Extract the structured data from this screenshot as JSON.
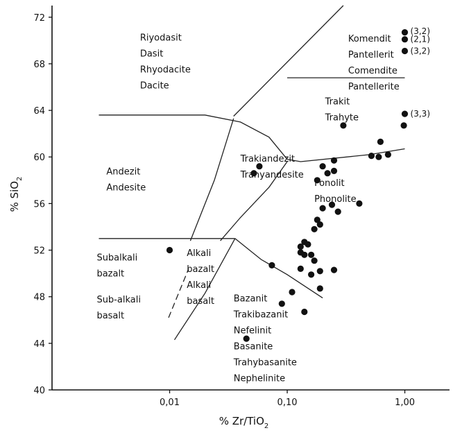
{
  "chart_data": {
    "type": "scatter",
    "title": "",
    "xlabel": "% Zr/TiO",
    "xlabel_sub": "2",
    "ylabel": "% SiO",
    "ylabel_sub": "2",
    "x_scale": "log",
    "xlim": [
      0.001,
      2.4
    ],
    "ylim": [
      40,
      73
    ],
    "x_ticks": [
      {
        "value": 0.01,
        "label": "0,01"
      },
      {
        "value": 0.1,
        "label": "0,10"
      },
      {
        "value": 1.0,
        "label": "1,00"
      }
    ],
    "y_ticks": [
      {
        "value": 40,
        "label": "40"
      },
      {
        "value": 44,
        "label": "44"
      },
      {
        "value": 48,
        "label": "48"
      },
      {
        "value": 52,
        "label": "52"
      },
      {
        "value": 56,
        "label": "56"
      },
      {
        "value": 60,
        "label": "60"
      },
      {
        "value": 64,
        "label": "64"
      },
      {
        "value": 68,
        "label": "68"
      },
      {
        "value": 72,
        "label": "72"
      }
    ],
    "grid": false,
    "legend": "none",
    "boundaries": [
      {
        "name": "rhyolite-trachyte",
        "points": [
          [
            0.035,
            63.5
          ],
          [
            0.3,
            73
          ]
        ]
      },
      {
        "name": "comendite-trachyte",
        "points": [
          [
            0.1,
            66.8
          ],
          [
            1.0,
            66.8
          ]
        ]
      },
      {
        "name": "andesite-upper",
        "points": [
          [
            0.0025,
            63.6
          ],
          [
            0.02,
            63.6
          ],
          [
            0.04,
            63.0
          ],
          [
            0.07,
            61.7
          ],
          [
            0.1,
            59.8
          ]
        ]
      },
      {
        "name": "phonolite-upper",
        "points": [
          [
            0.1,
            59.8
          ],
          [
            0.13,
            59.6
          ],
          [
            0.5,
            60.2
          ],
          [
            1.0,
            60.7
          ]
        ]
      },
      {
        "name": "trachyandesite-lower",
        "points": [
          [
            0.027,
            52.8
          ],
          [
            0.04,
            54.8
          ],
          [
            0.07,
            57.4
          ],
          [
            0.1,
            59.6
          ]
        ]
      },
      {
        "name": "dacite-andesite-divide",
        "points": [
          [
            0.015,
            52.8
          ],
          [
            0.024,
            58.0
          ],
          [
            0.035,
            63.3
          ]
        ]
      },
      {
        "name": "subalkali-top",
        "points": [
          [
            0.0025,
            53.0
          ],
          [
            0.036,
            53.0
          ]
        ]
      },
      {
        "name": "bazanit-upper",
        "points": [
          [
            0.036,
            53.0
          ],
          [
            0.06,
            51.2
          ],
          [
            0.1,
            49.9
          ],
          [
            0.2,
            47.9
          ]
        ]
      },
      {
        "name": "alkali-basalt-line",
        "points": [
          [
            0.011,
            44.3
          ],
          [
            0.02,
            48.3
          ],
          [
            0.036,
            53.0
          ]
        ]
      }
    ],
    "dashed_boundary": {
      "name": "subalkali-alkali-dashed",
      "points": [
        [
          0.0098,
          46.2
        ],
        [
          0.0145,
          50.4
        ]
      ]
    },
    "region_labels": [
      {
        "lines": [
          "Riyodasit",
          "Dasit",
          "Rhyodacite",
          "Dacite"
        ],
        "x": 0.0056,
        "y": 70.0
      },
      {
        "lines": [
          "Komendit",
          "Pantellerit",
          "Comendite",
          "Pantellerite"
        ],
        "x": 0.33,
        "y": 69.9
      },
      {
        "lines": [
          "Trakit",
          "Trahyte"
        ],
        "x": 0.21,
        "y": 64.5
      },
      {
        "lines": [
          "Trakiandezit",
          "Trahyandesite"
        ],
        "x": 0.04,
        "y": 59.6
      },
      {
        "lines": [
          "Andezit",
          "Andesite"
        ],
        "x": 0.0029,
        "y": 58.5
      },
      {
        "lines": [
          "Fonolit",
          "Phonolite"
        ],
        "x": 0.17,
        "y": 57.5
      },
      {
        "lines": [
          "Alkali",
          "bazalt",
          "Alkali",
          "basalt"
        ],
        "x": 0.014,
        "y": 51.5
      },
      {
        "lines": [
          "Subalkali",
          "bazalt"
        ],
        "x": 0.0024,
        "y": 51.1
      },
      {
        "lines": [
          "Sub-alkali",
          "basalt"
        ],
        "x": 0.0024,
        "y": 47.5
      },
      {
        "lines": [
          "Bazanit",
          "Trakibazanit",
          "Nefelinit",
          "Basanite",
          "Trahybasanite",
          "Nephelinite"
        ],
        "x": 0.035,
        "y": 47.6
      }
    ],
    "point_labels": [
      {
        "text": "(3,2)",
        "x": 1.0,
        "y": 70.8
      },
      {
        "text": "(2,1)",
        "x": 1.0,
        "y": 70.1
      },
      {
        "text": "(3,2)",
        "x": 1.0,
        "y": 69.1
      },
      {
        "text": "(3,3)",
        "x": 1.0,
        "y": 63.7
      }
    ],
    "points": [
      {
        "x": 1.0,
        "y": 70.7
      },
      {
        "x": 1.0,
        "y": 70.1
      },
      {
        "x": 1.0,
        "y": 69.1
      },
      {
        "x": 1.0,
        "y": 63.7
      },
      {
        "x": 0.98,
        "y": 62.7
      },
      {
        "x": 0.3,
        "y": 62.7
      },
      {
        "x": 0.62,
        "y": 61.3
      },
      {
        "x": 0.52,
        "y": 60.1
      },
      {
        "x": 0.6,
        "y": 60.0
      },
      {
        "x": 0.72,
        "y": 60.2
      },
      {
        "x": 0.25,
        "y": 59.7
      },
      {
        "x": 0.2,
        "y": 59.2
      },
      {
        "x": 0.25,
        "y": 58.8
      },
      {
        "x": 0.22,
        "y": 58.6
      },
      {
        "x": 0.18,
        "y": 58.0
      },
      {
        "x": 0.058,
        "y": 59.2
      },
      {
        "x": 0.052,
        "y": 58.6
      },
      {
        "x": 0.41,
        "y": 56.0
      },
      {
        "x": 0.24,
        "y": 55.9
      },
      {
        "x": 0.2,
        "y": 55.6
      },
      {
        "x": 0.27,
        "y": 55.3
      },
      {
        "x": 0.18,
        "y": 54.6
      },
      {
        "x": 0.19,
        "y": 54.2
      },
      {
        "x": 0.17,
        "y": 53.8
      },
      {
        "x": 0.14,
        "y": 52.7
      },
      {
        "x": 0.15,
        "y": 52.5
      },
      {
        "x": 0.13,
        "y": 52.3
      },
      {
        "x": 0.13,
        "y": 51.8
      },
      {
        "x": 0.14,
        "y": 51.6
      },
      {
        "x": 0.16,
        "y": 51.6
      },
      {
        "x": 0.17,
        "y": 51.1
      },
      {
        "x": 0.074,
        "y": 50.7
      },
      {
        "x": 0.13,
        "y": 50.4
      },
      {
        "x": 0.25,
        "y": 50.3
      },
      {
        "x": 0.19,
        "y": 50.2
      },
      {
        "x": 0.16,
        "y": 49.9
      },
      {
        "x": 0.11,
        "y": 48.4
      },
      {
        "x": 0.19,
        "y": 48.7
      },
      {
        "x": 0.09,
        "y": 47.4
      },
      {
        "x": 0.14,
        "y": 46.7
      },
      {
        "x": 0.01,
        "y": 52.0
      },
      {
        "x": 0.045,
        "y": 44.4
      }
    ]
  }
}
